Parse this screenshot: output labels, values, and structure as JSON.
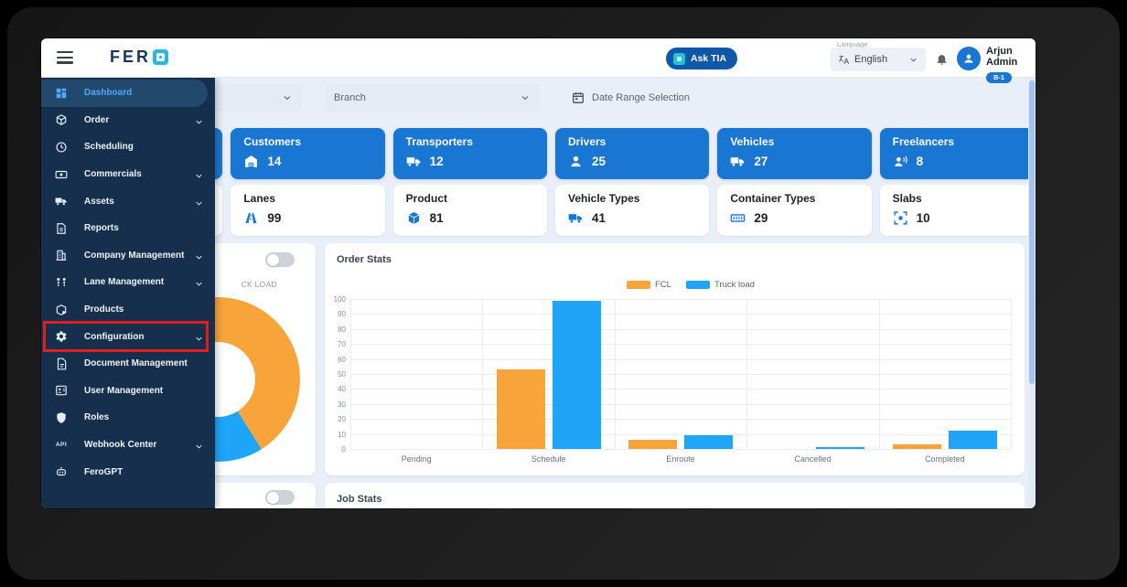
{
  "header": {
    "brand_text": "FER",
    "ask_tia_label": "Ask TIA",
    "language_label": "Language",
    "language_value": "English",
    "user_name": "Arjun Admin",
    "user_badge": "B-1"
  },
  "sidebar": {
    "items": [
      {
        "label": "Dashboard",
        "icon": "dashboard-icon",
        "active": true,
        "expandable": false,
        "highlighted": false
      },
      {
        "label": "Order",
        "icon": "order-icon",
        "active": false,
        "expandable": true,
        "highlighted": false
      },
      {
        "label": "Scheduling",
        "icon": "scheduling-icon",
        "active": false,
        "expandable": false,
        "highlighted": false
      },
      {
        "label": "Commercials",
        "icon": "commercials-icon",
        "active": false,
        "expandable": true,
        "highlighted": false
      },
      {
        "label": "Assets",
        "icon": "truck-icon",
        "active": false,
        "expandable": true,
        "highlighted": false
      },
      {
        "label": "Reports",
        "icon": "reports-icon",
        "active": false,
        "expandable": false,
        "highlighted": false
      },
      {
        "label": "Company Management",
        "icon": "company-icon",
        "active": false,
        "expandable": true,
        "highlighted": false
      },
      {
        "label": "Lane Management",
        "icon": "lane-icon",
        "active": false,
        "expandable": true,
        "highlighted": false
      },
      {
        "label": "Products",
        "icon": "products-icon",
        "active": false,
        "expandable": false,
        "highlighted": false
      },
      {
        "label": "Configuration",
        "icon": "gear-icon",
        "active": false,
        "expandable": true,
        "highlighted": true
      },
      {
        "label": "Document Management",
        "icon": "document-icon",
        "active": false,
        "expandable": false,
        "highlighted": false
      },
      {
        "label": "User Management",
        "icon": "user-card-icon",
        "active": false,
        "expandable": false,
        "highlighted": false
      },
      {
        "label": "Roles",
        "icon": "shield-icon",
        "active": false,
        "expandable": false,
        "highlighted": false
      },
      {
        "label": "Webhook Center",
        "icon": "api-icon",
        "active": false,
        "expandable": true,
        "highlighted": false
      },
      {
        "label": "FeroGPT",
        "icon": "robot-icon",
        "active": false,
        "expandable": false,
        "highlighted": false
      }
    ]
  },
  "filters": {
    "branch_placeholder": "Branch",
    "date_range_placeholder": "Date Range Selection"
  },
  "stats": {
    "row1": [
      {
        "label": "Customers",
        "value": "14",
        "icon": "warehouse-icon"
      },
      {
        "label": "Transporters",
        "value": "12",
        "icon": "truck-icon"
      },
      {
        "label": "Drivers",
        "value": "25",
        "icon": "person-icon"
      },
      {
        "label": "Vehicles",
        "value": "27",
        "icon": "truck-icon"
      },
      {
        "label": "Freelancers",
        "value": "8",
        "icon": "person-speak-icon"
      }
    ],
    "row2": [
      {
        "label": "Lanes",
        "value": "99",
        "icon": "road-icon"
      },
      {
        "label": "Product",
        "value": "81",
        "icon": "box-icon"
      },
      {
        "label": "Vehicle Types",
        "value": "41",
        "icon": "truck-icon"
      },
      {
        "label": "Container Types",
        "value": "29",
        "icon": "container-icon"
      },
      {
        "label": "Slabs",
        "value": "10",
        "icon": "slabs-icon"
      }
    ]
  },
  "panels": {
    "donut_visible_label": "CK LOAD",
    "order_stats_title": "Order Stats",
    "job_stats_title": "Job Stats"
  },
  "chart_data": [
    {
      "type": "pie",
      "subtype": "donut",
      "visible_label": "CK LOAD",
      "slices": [
        {
          "name": "FCL",
          "value": 72,
          "color": "#F7A53B"
        },
        {
          "name": "Truck load",
          "value": 28,
          "color": "#1EA5F7"
        }
      ],
      "layout": {
        "start_angle_deg": 148,
        "blue_sweep_deg": 102
      }
    },
    {
      "type": "bar",
      "title": "Order Stats",
      "categories": [
        "Pending",
        "Schedule",
        "Enroute",
        "Cancelled",
        "Completed"
      ],
      "series": [
        {
          "name": "FCL",
          "color": "#F7A53B",
          "values": [
            0,
            53,
            6,
            0,
            3
          ]
        },
        {
          "name": "Truck load",
          "color": "#1EA5F7",
          "values": [
            0,
            99,
            9,
            1,
            12
          ]
        }
      ],
      "ylim": [
        0,
        100
      ],
      "yticks": [
        0,
        10,
        20,
        30,
        40,
        50,
        60,
        70,
        80,
        90,
        100
      ],
      "grid": true,
      "legend_position": "top-right"
    }
  ],
  "colors": {
    "accent_blue": "#1976d2",
    "chart_orange": "#F7A53B",
    "chart_blue": "#1EA5F7",
    "sidebar_bg": "#152F4C",
    "highlight_red": "#E11D1D"
  }
}
